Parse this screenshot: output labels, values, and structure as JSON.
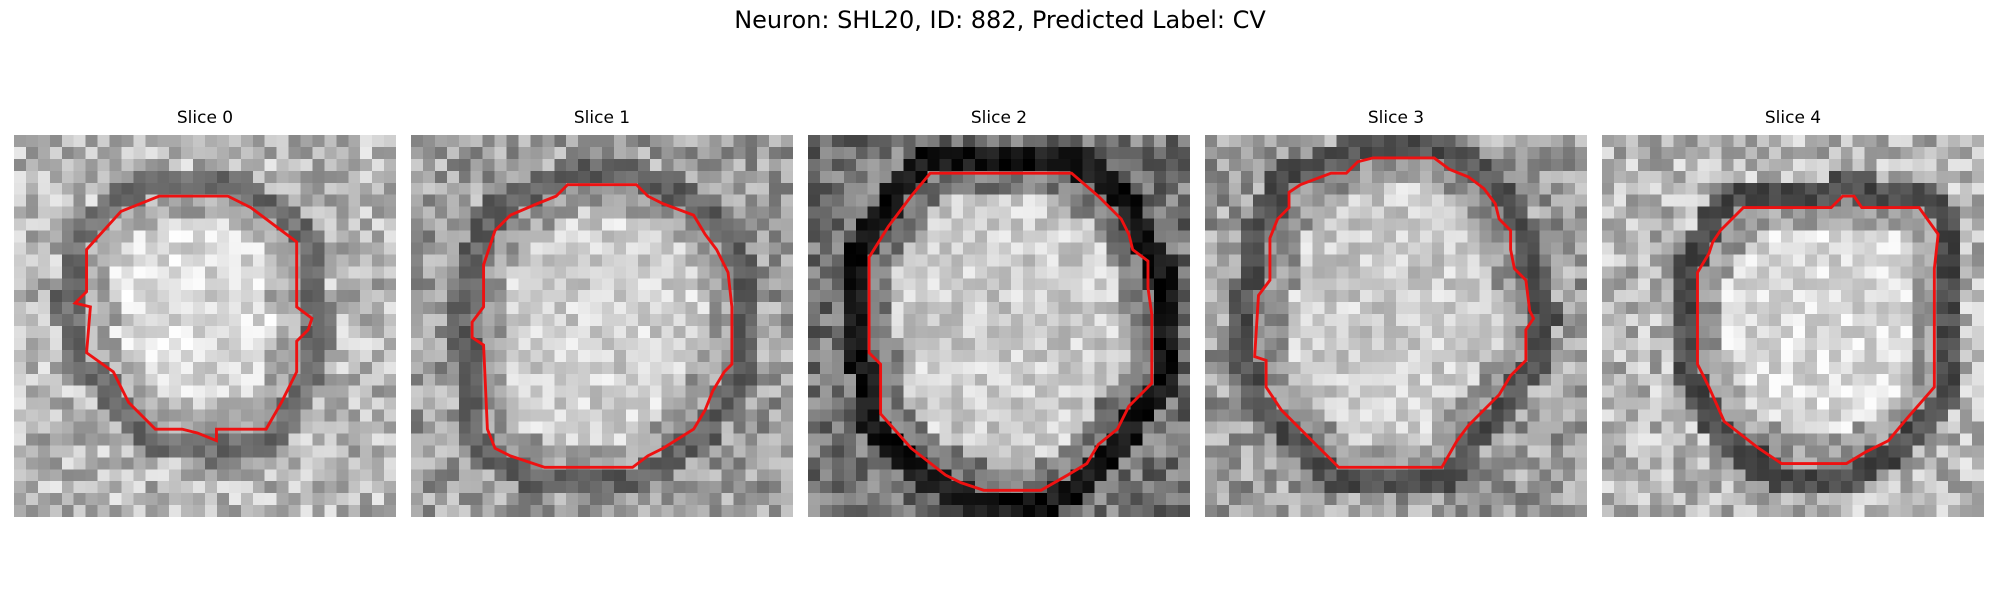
{
  "figure": {
    "title": "Neuron: SHL20, ID: 882, Predicted Label: CV"
  },
  "contour_color": "#ee1111",
  "slices": [
    {
      "title": "Slice 0",
      "background": "light",
      "seed": 11,
      "inner_brightness": 0.86,
      "ring_darkness": 0.42,
      "contour": [
        [
          0.38,
          0.16
        ],
        [
          0.56,
          0.16
        ],
        [
          0.62,
          0.19
        ],
        [
          0.74,
          0.28
        ],
        [
          0.74,
          0.45
        ],
        [
          0.78,
          0.48
        ],
        [
          0.77,
          0.51
        ],
        [
          0.74,
          0.54
        ],
        [
          0.74,
          0.62
        ],
        [
          0.7,
          0.7
        ],
        [
          0.66,
          0.77
        ],
        [
          0.63,
          0.77
        ],
        [
          0.53,
          0.77
        ],
        [
          0.53,
          0.8
        ],
        [
          0.48,
          0.78
        ],
        [
          0.44,
          0.77
        ],
        [
          0.37,
          0.77
        ],
        [
          0.3,
          0.7
        ],
        [
          0.26,
          0.62
        ],
        [
          0.19,
          0.57
        ],
        [
          0.2,
          0.45
        ],
        [
          0.16,
          0.44
        ],
        [
          0.19,
          0.41
        ],
        [
          0.19,
          0.3
        ],
        [
          0.28,
          0.2
        ]
      ]
    },
    {
      "title": "Slice 1",
      "background": "mixed",
      "seed": 23,
      "inner_brightness": 0.82,
      "ring_darkness": 0.38,
      "contour": [
        [
          0.38,
          0.16
        ],
        [
          0.41,
          0.13
        ],
        [
          0.59,
          0.13
        ],
        [
          0.62,
          0.16
        ],
        [
          0.66,
          0.18
        ],
        [
          0.74,
          0.21
        ],
        [
          0.77,
          0.26
        ],
        [
          0.8,
          0.3
        ],
        [
          0.83,
          0.36
        ],
        [
          0.84,
          0.45
        ],
        [
          0.84,
          0.6
        ],
        [
          0.82,
          0.62
        ],
        [
          0.79,
          0.67
        ],
        [
          0.77,
          0.72
        ],
        [
          0.74,
          0.77
        ],
        [
          0.66,
          0.82
        ],
        [
          0.62,
          0.84
        ],
        [
          0.58,
          0.87
        ],
        [
          0.35,
          0.87
        ],
        [
          0.26,
          0.84
        ],
        [
          0.22,
          0.82
        ],
        [
          0.2,
          0.77
        ],
        [
          0.19,
          0.55
        ],
        [
          0.16,
          0.53
        ],
        [
          0.16,
          0.49
        ],
        [
          0.19,
          0.45
        ],
        [
          0.19,
          0.34
        ],
        [
          0.22,
          0.25
        ],
        [
          0.26,
          0.21
        ],
        [
          0.33,
          0.18
        ]
      ]
    },
    {
      "title": "Slice 2",
      "background": "dark",
      "seed": 37,
      "inner_brightness": 0.8,
      "ring_darkness": 0.08,
      "contour": [
        [
          0.32,
          0.1
        ],
        [
          0.69,
          0.1
        ],
        [
          0.76,
          0.16
        ],
        [
          0.82,
          0.22
        ],
        [
          0.84,
          0.26
        ],
        [
          0.85,
          0.3
        ],
        [
          0.89,
          0.33
        ],
        [
          0.89,
          0.4
        ],
        [
          0.9,
          0.47
        ],
        [
          0.9,
          0.65
        ],
        [
          0.84,
          0.71
        ],
        [
          0.81,
          0.77
        ],
        [
          0.76,
          0.81
        ],
        [
          0.73,
          0.86
        ],
        [
          0.68,
          0.89
        ],
        [
          0.61,
          0.93
        ],
        [
          0.51,
          0.93
        ],
        [
          0.46,
          0.93
        ],
        [
          0.4,
          0.91
        ],
        [
          0.36,
          0.89
        ],
        [
          0.27,
          0.82
        ],
        [
          0.19,
          0.73
        ],
        [
          0.19,
          0.6
        ],
        [
          0.16,
          0.57
        ],
        [
          0.16,
          0.4
        ],
        [
          0.16,
          0.32
        ],
        [
          0.21,
          0.24
        ],
        [
          0.27,
          0.16
        ]
      ]
    },
    {
      "title": "Slice 3",
      "background": "mixed",
      "seed": 51,
      "inner_brightness": 0.8,
      "ring_darkness": 0.32,
      "contour": [
        [
          0.33,
          0.1
        ],
        [
          0.37,
          0.1
        ],
        [
          0.4,
          0.07
        ],
        [
          0.44,
          0.06
        ],
        [
          0.48,
          0.06
        ],
        [
          0.6,
          0.06
        ],
        [
          0.64,
          0.09
        ],
        [
          0.69,
          0.11
        ],
        [
          0.73,
          0.14
        ],
        [
          0.76,
          0.18
        ],
        [
          0.77,
          0.22
        ],
        [
          0.8,
          0.25
        ],
        [
          0.8,
          0.3
        ],
        [
          0.81,
          0.35
        ],
        [
          0.84,
          0.38
        ],
        [
          0.85,
          0.46
        ],
        [
          0.86,
          0.48
        ],
        [
          0.84,
          0.51
        ],
        [
          0.84,
          0.59
        ],
        [
          0.8,
          0.63
        ],
        [
          0.77,
          0.68
        ],
        [
          0.73,
          0.72
        ],
        [
          0.69,
          0.76
        ],
        [
          0.66,
          0.8
        ],
        [
          0.62,
          0.87
        ],
        [
          0.44,
          0.87
        ],
        [
          0.35,
          0.87
        ],
        [
          0.2,
          0.72
        ],
        [
          0.16,
          0.66
        ],
        [
          0.16,
          0.59
        ],
        [
          0.13,
          0.58
        ],
        [
          0.14,
          0.42
        ],
        [
          0.17,
          0.38
        ],
        [
          0.17,
          0.27
        ],
        [
          0.19,
          0.22
        ],
        [
          0.22,
          0.19
        ],
        [
          0.22,
          0.15
        ],
        [
          0.25,
          0.13
        ]
      ]
    },
    {
      "title": "Slice 4",
      "background": "light",
      "seed": 67,
      "inner_brightness": 0.86,
      "ring_darkness": 0.3,
      "contour": [
        [
          0.37,
          0.19
        ],
        [
          0.6,
          0.19
        ],
        [
          0.63,
          0.16
        ],
        [
          0.66,
          0.16
        ],
        [
          0.68,
          0.19
        ],
        [
          0.83,
          0.19
        ],
        [
          0.88,
          0.26
        ],
        [
          0.87,
          0.35
        ],
        [
          0.87,
          0.66
        ],
        [
          0.8,
          0.74
        ],
        [
          0.75,
          0.8
        ],
        [
          0.69,
          0.83
        ],
        [
          0.64,
          0.86
        ],
        [
          0.47,
          0.86
        ],
        [
          0.41,
          0.82
        ],
        [
          0.32,
          0.75
        ],
        [
          0.28,
          0.66
        ],
        [
          0.25,
          0.6
        ],
        [
          0.25,
          0.36
        ],
        [
          0.28,
          0.31
        ],
        [
          0.29,
          0.28
        ],
        [
          0.31,
          0.25
        ]
      ]
    }
  ]
}
